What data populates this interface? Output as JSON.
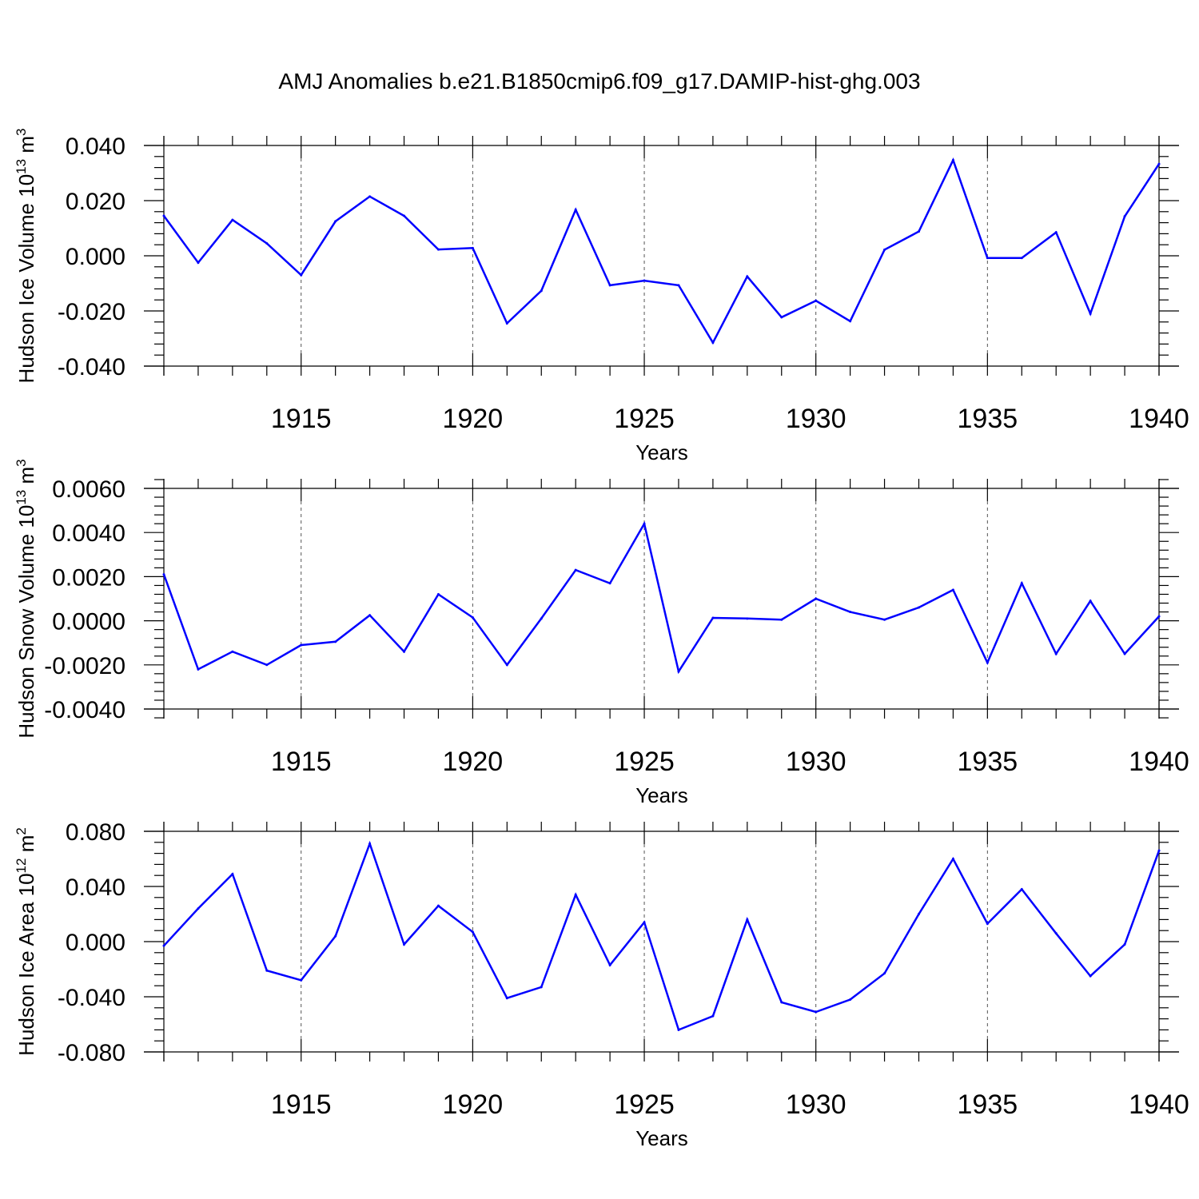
{
  "title": "AMJ Anomalies b.e21.B1850cmip6.f09_g17.DAMIP-hist-ghg.003",
  "colors": {
    "series": "#0000ff",
    "axes": "#000000"
  },
  "chart_data": [
    {
      "type": "line",
      "ylabel": "Hudson Ice Volume 10",
      "ylabel_sup": "13",
      "ylabel_unit": " m",
      "ylabel_unit_sup": "3",
      "xlabel": "Years",
      "xlim": [
        1911,
        1940
      ],
      "ylim": [
        -0.04,
        0.04
      ],
      "yticks": [
        -0.04,
        -0.02,
        0.0,
        0.02,
        0.04
      ],
      "ytick_labels": [
        "-0.040",
        "-0.020",
        "0.000",
        "0.020",
        "0.040"
      ],
      "xticks": [
        1915,
        1920,
        1925,
        1930,
        1935,
        1940
      ],
      "xtick_labels": [
        "1915",
        "1920",
        "1925",
        "1930",
        "1935",
        "1940"
      ],
      "grid": "vertical dashed at major x ticks",
      "x": [
        1911,
        1912,
        1913,
        1914,
        1915,
        1916,
        1917,
        1918,
        1919,
        1920,
        1921,
        1922,
        1923,
        1924,
        1925,
        1926,
        1927,
        1928,
        1929,
        1930,
        1931,
        1932,
        1933,
        1934,
        1935,
        1936,
        1937,
        1938,
        1939,
        1940
      ],
      "values": [
        0.0145,
        -0.0025,
        0.013,
        0.0045,
        -0.007,
        0.0125,
        0.0215,
        0.0145,
        0.0023,
        0.0028,
        -0.0245,
        -0.0127,
        0.0167,
        -0.0107,
        -0.009,
        -0.0107,
        -0.0315,
        -0.0075,
        -0.0223,
        -0.0163,
        -0.0237,
        0.0022,
        0.0088,
        0.0347,
        -0.0008,
        -0.0008,
        0.0085,
        -0.021,
        0.0143,
        0.0333
      ]
    },
    {
      "type": "line",
      "ylabel": "Hudson Snow Volume 10",
      "ylabel_sup": "13",
      "ylabel_unit": " m",
      "ylabel_unit_sup": "3",
      "xlabel": "Years",
      "xlim": [
        1911,
        1940
      ],
      "ylim": [
        -0.004,
        0.006
      ],
      "yticks": [
        -0.004,
        -0.002,
        0.0,
        0.002,
        0.004,
        0.006
      ],
      "ytick_labels": [
        "-0.0040",
        "-0.0020",
        "0.0000",
        "0.0020",
        "0.0040",
        "0.0060"
      ],
      "xticks": [
        1915,
        1920,
        1925,
        1930,
        1935,
        1940
      ],
      "xtick_labels": [
        "1915",
        "1920",
        "1925",
        "1930",
        "1935",
        "1940"
      ],
      "grid": "vertical dashed at major x ticks",
      "x": [
        1911,
        1912,
        1913,
        1914,
        1915,
        1916,
        1917,
        1918,
        1919,
        1920,
        1921,
        1922,
        1923,
        1924,
        1925,
        1926,
        1927,
        1928,
        1929,
        1930,
        1931,
        1932,
        1933,
        1934,
        1935,
        1936,
        1937,
        1938,
        1939,
        1940
      ],
      "values": [
        0.0021,
        -0.0022,
        -0.0014,
        -0.002,
        -0.0011,
        -0.00095,
        0.00025,
        -0.0014,
        0.0012,
        0.00015,
        -0.002,
        0.0001,
        0.0023,
        0.0017,
        0.0044,
        -0.0023,
        0.00013,
        0.0001,
        5e-05,
        0.001,
        0.0004,
        5e-05,
        0.0006,
        0.0014,
        -0.0019,
        0.0017,
        -0.0015,
        0.0009,
        -0.0015,
        0.0002
      ]
    },
    {
      "type": "line",
      "ylabel": "Hudson Ice Area 10",
      "ylabel_sup": "12",
      "ylabel_unit": " m",
      "ylabel_unit_sup": "2",
      "xlabel": "Years",
      "xlim": [
        1911,
        1940
      ],
      "ylim": [
        -0.09,
        0.09
      ],
      "yticks": [
        -0.08,
        -0.04,
        0.0,
        0.04,
        0.08
      ],
      "ytick_labels": [
        "-0.080",
        "-0.040",
        "0.000",
        "0.040",
        "0.080"
      ],
      "xticks": [
        1915,
        1920,
        1925,
        1930,
        1935,
        1940
      ],
      "xtick_labels": [
        "1915",
        "1920",
        "1925",
        "1930",
        "1935",
        "1940"
      ],
      "grid": "vertical dashed at major x ticks",
      "x": [
        1911,
        1912,
        1913,
        1914,
        1915,
        1916,
        1917,
        1918,
        1919,
        1920,
        1921,
        1922,
        1923,
        1924,
        1925,
        1926,
        1927,
        1928,
        1929,
        1930,
        1931,
        1932,
        1933,
        1934,
        1935,
        1936,
        1937,
        1938,
        1939,
        1940
      ],
      "values": [
        -0.003,
        0.024,
        0.049,
        -0.021,
        -0.028,
        0.004,
        0.071,
        -0.002,
        0.026,
        0.007,
        -0.041,
        -0.033,
        0.034,
        -0.017,
        0.014,
        -0.064,
        -0.054,
        0.016,
        -0.044,
        -0.051,
        -0.042,
        -0.023,
        0.02,
        0.06,
        0.013,
        0.038,
        0.006,
        -0.025,
        -0.002,
        0.066
      ]
    }
  ]
}
